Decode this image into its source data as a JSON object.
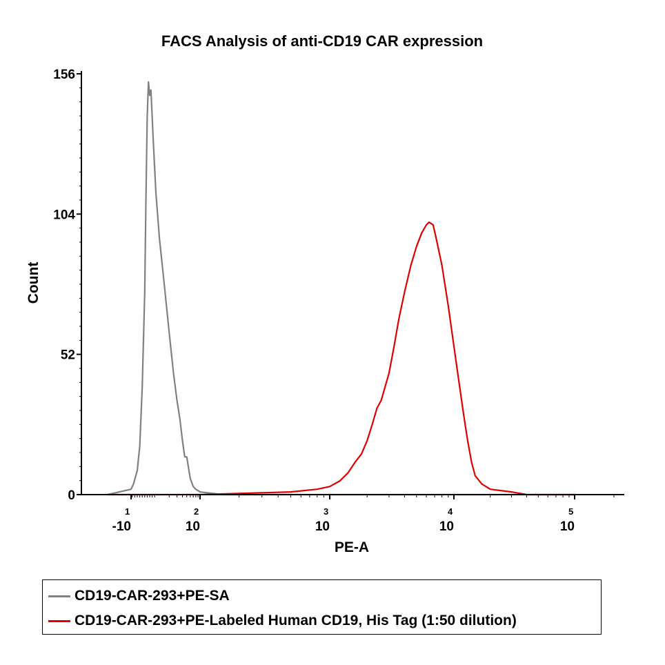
{
  "chart_data": {
    "type": "line",
    "title": "FACS Analysis of anti-CD19 CAR expression",
    "xlabel": "PE-A",
    "ylabel": "Count",
    "x_scale": "biexponential (log)",
    "xlim": [
      -20,
      200000
    ],
    "ylim": [
      0,
      156
    ],
    "y_ticks": [
      0,
      52,
      104,
      156
    ],
    "x_ticks": [
      {
        "base": "-10",
        "exp": "1",
        "value": -10
      },
      {
        "base": "10",
        "exp": "2",
        "value": 100
      },
      {
        "base": "10",
        "exp": "3",
        "value": 1000
      },
      {
        "base": "10",
        "exp": "4",
        "value": 10000
      },
      {
        "base": "10",
        "exp": "5",
        "value": 100000
      }
    ],
    "series": [
      {
        "name": "CD19-CAR-293+PE-SA",
        "color": "#808080",
        "points": [
          [
            -15,
            0
          ],
          [
            -10,
            2
          ],
          [
            -8,
            4
          ],
          [
            -5,
            9
          ],
          [
            -3,
            18
          ],
          [
            -1,
            40
          ],
          [
            1,
            75
          ],
          [
            2,
            110
          ],
          [
            3,
            140
          ],
          [
            4,
            153
          ],
          [
            5,
            148
          ],
          [
            6,
            150
          ],
          [
            7,
            140
          ],
          [
            8,
            130
          ],
          [
            10,
            112
          ],
          [
            12,
            95
          ],
          [
            15,
            80
          ],
          [
            20,
            60
          ],
          [
            25,
            45
          ],
          [
            30,
            35
          ],
          [
            35,
            28
          ],
          [
            40,
            20
          ],
          [
            45,
            14
          ],
          [
            50,
            14
          ],
          [
            60,
            6
          ],
          [
            70,
            3
          ],
          [
            80,
            2
          ],
          [
            100,
            1
          ],
          [
            150,
            0
          ],
          [
            300,
            0
          ],
          [
            1000,
            0
          ],
          [
            100000,
            0
          ]
        ]
      },
      {
        "name": "CD19-CAR-293+PE-Labeled Human CD19, His Tag (1:50 dilution)",
        "color": "#e00000",
        "points": [
          [
            -15,
            0
          ],
          [
            100,
            0
          ],
          [
            500,
            1
          ],
          [
            800,
            2
          ],
          [
            1000,
            3
          ],
          [
            1200,
            5
          ],
          [
            1400,
            8
          ],
          [
            1600,
            12
          ],
          [
            1800,
            15
          ],
          [
            2000,
            20
          ],
          [
            2200,
            26
          ],
          [
            2400,
            32
          ],
          [
            2600,
            35
          ],
          [
            3000,
            45
          ],
          [
            3300,
            55
          ],
          [
            3600,
            65
          ],
          [
            4000,
            75
          ],
          [
            4500,
            85
          ],
          [
            5000,
            92
          ],
          [
            5500,
            97
          ],
          [
            6000,
            100
          ],
          [
            6300,
            101
          ],
          [
            6800,
            100
          ],
          [
            7200,
            95
          ],
          [
            8000,
            85
          ],
          [
            9000,
            70
          ],
          [
            10000,
            55
          ],
          [
            11000,
            42
          ],
          [
            12000,
            30
          ],
          [
            13000,
            20
          ],
          [
            14000,
            12
          ],
          [
            15000,
            7
          ],
          [
            17000,
            4
          ],
          [
            20000,
            2
          ],
          [
            30000,
            1
          ],
          [
            40000,
            0
          ],
          [
            100000,
            0
          ]
        ]
      }
    ],
    "legend_position": "bottom"
  }
}
